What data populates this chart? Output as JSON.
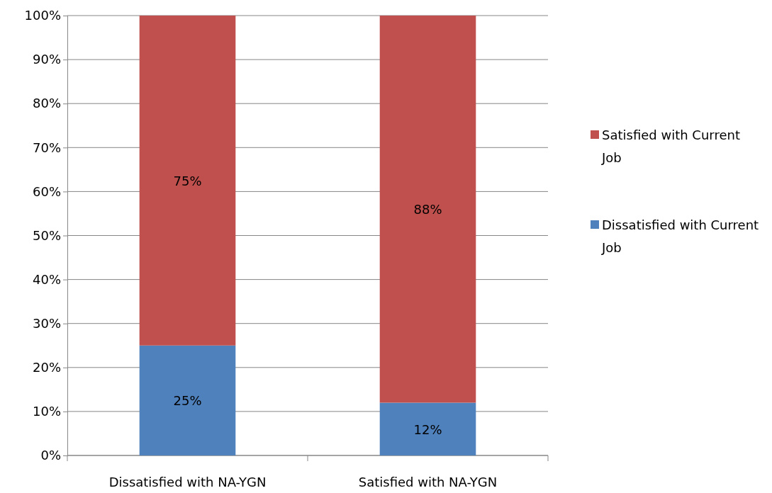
{
  "chart_data": {
    "type": "bar",
    "stacked": true,
    "categories": [
      "Dissatisfied with NA-YGN",
      "Satisfied with NA-YGN"
    ],
    "series": [
      {
        "name": "Dissatisfied with Current Job",
        "color": "#4f81bd",
        "values": [
          25,
          12
        ],
        "value_labels": [
          "25%",
          "12%"
        ]
      },
      {
        "name": "Satisfied with Current Job",
        "color": "#c0504d",
        "values": [
          75,
          88
        ],
        "value_labels": [
          "75%",
          "88%"
        ]
      }
    ],
    "ylim": [
      0,
      100
    ],
    "yticks": [
      {
        "value": 0,
        "label": "0%"
      },
      {
        "value": 10,
        "label": "10%"
      },
      {
        "value": 20,
        "label": "20%"
      },
      {
        "value": 30,
        "label": "30%"
      },
      {
        "value": 40,
        "label": "40%"
      },
      {
        "value": 50,
        "label": "50%"
      },
      {
        "value": 60,
        "label": "60%"
      },
      {
        "value": 70,
        "label": "70%"
      },
      {
        "value": 80,
        "label": "80%"
      },
      {
        "value": 90,
        "label": "90%"
      },
      {
        "value": 100,
        "label": "100%"
      }
    ],
    "grid": "y",
    "legend": "right"
  }
}
